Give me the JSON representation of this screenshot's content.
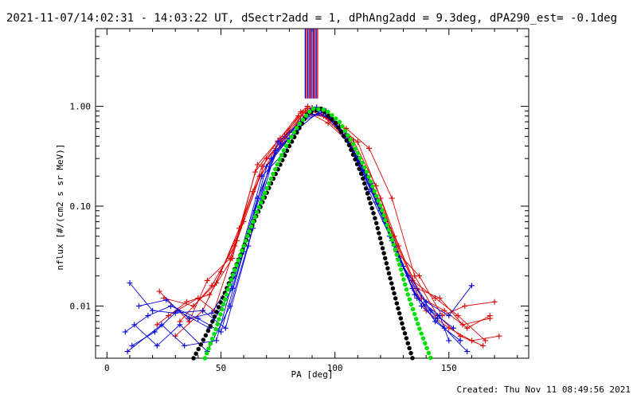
{
  "chart_data": {
    "type": "line",
    "title": "2021-11-07/14:02:31 - 14:03:22 UT, dSectr2add = 1, dPhAng2add = 9.3deg, dPA290_est= -0.1deg",
    "xlabel": "PA [deg]",
    "ylabel": "nflux [#/(cm2 s sr MeV)]",
    "xlim": [
      -5,
      185
    ],
    "ylim": [
      0.003,
      6.0
    ],
    "yscale": "log",
    "x_ticks": [
      0,
      50,
      100,
      150
    ],
    "x_tick_labels": [
      "0",
      "50",
      "100",
      "150"
    ],
    "y_ticks": [
      0.01,
      0.1,
      1.0
    ],
    "y_tick_labels": [
      "0.01",
      "0.10",
      "1.00"
    ],
    "footer": "Created: Thu Nov 11 08:49:56 2021",
    "colors": {
      "red": "#dd0000",
      "blue": "#0000dd",
      "black": "#000000",
      "green": "#00e000"
    },
    "fits": [
      {
        "color": "black",
        "style": "dotted",
        "x": [
          38,
          45,
          52,
          58,
          65,
          72,
          80,
          88,
          94,
          100,
          106,
          112,
          118,
          124,
          130,
          134
        ],
        "y": [
          0.003,
          0.006,
          0.014,
          0.03,
          0.075,
          0.17,
          0.4,
          0.85,
          0.95,
          0.7,
          0.42,
          0.2,
          0.07,
          0.02,
          0.006,
          0.003
        ]
      },
      {
        "color": "green",
        "style": "dotted",
        "x": [
          43,
          48,
          54,
          60,
          66,
          72,
          78,
          84,
          90,
          96,
          102,
          108,
          114,
          120,
          126,
          132,
          137,
          142
        ],
        "y": [
          0.003,
          0.006,
          0.017,
          0.04,
          0.09,
          0.19,
          0.38,
          0.65,
          0.95,
          0.92,
          0.7,
          0.42,
          0.22,
          0.1,
          0.04,
          0.013,
          0.006,
          0.003
        ]
      }
    ],
    "series": [
      {
        "color": "red",
        "x": [
          22,
          35,
          45,
          55,
          65,
          75,
          85,
          88,
          95,
          105,
          115,
          125,
          135,
          145,
          155,
          165
        ],
        "y": [
          0.0065,
          0.011,
          0.013,
          0.03,
          0.22,
          0.45,
          0.88,
          1.0,
          0.8,
          0.6,
          0.38,
          0.12,
          0.02,
          0.008,
          0.005,
          0.004
        ]
      },
      {
        "color": "red",
        "x": [
          25,
          38,
          48,
          58,
          68,
          78,
          88,
          98,
          108,
          118,
          128,
          138,
          148,
          158,
          168
        ],
        "y": [
          0.012,
          0.01,
          0.017,
          0.06,
          0.25,
          0.5,
          0.95,
          0.72,
          0.46,
          0.16,
          0.04,
          0.012,
          0.009,
          0.006,
          0.008
        ]
      },
      {
        "color": "red",
        "x": [
          27,
          40,
          47,
          57,
          67,
          77,
          87,
          97,
          107,
          117,
          127,
          137,
          147,
          157,
          170
        ],
        "y": [
          0.008,
          0.012,
          0.009,
          0.045,
          0.2,
          0.42,
          0.9,
          0.68,
          0.42,
          0.14,
          0.035,
          0.02,
          0.008,
          0.01,
          0.011
        ]
      },
      {
        "color": "red",
        "x": [
          30,
          42,
          50,
          60,
          70,
          80,
          90,
          100,
          110,
          120,
          130,
          140,
          150,
          160,
          172
        ],
        "y": [
          0.005,
          0.009,
          0.022,
          0.07,
          0.3,
          0.55,
          0.97,
          0.66,
          0.44,
          0.12,
          0.025,
          0.009,
          0.006,
          0.0045,
          0.005
        ]
      },
      {
        "color": "red",
        "x": [
          23,
          36,
          44,
          54,
          64,
          74,
          84,
          94,
          104,
          114,
          124,
          134,
          144,
          154,
          166
        ],
        "y": [
          0.014,
          0.007,
          0.018,
          0.03,
          0.14,
          0.38,
          0.8,
          0.84,
          0.5,
          0.2,
          0.06,
          0.018,
          0.012,
          0.008,
          0.0045
        ]
      },
      {
        "color": "red",
        "x": [
          32,
          46,
          56,
          66,
          76,
          86,
          96,
          106,
          116,
          126,
          136,
          146,
          156,
          168
        ],
        "y": [
          0.007,
          0.016,
          0.04,
          0.26,
          0.48,
          0.86,
          0.78,
          0.5,
          0.17,
          0.05,
          0.015,
          0.012,
          0.0065,
          0.0075
        ]
      },
      {
        "color": "blue",
        "x": [
          8,
          18,
          28,
          40,
          50,
          60,
          70,
          80,
          90,
          100,
          110,
          120,
          130,
          140,
          150,
          160
        ],
        "y": [
          0.0055,
          0.008,
          0.01,
          0.0075,
          0.0055,
          0.035,
          0.25,
          0.48,
          0.95,
          0.7,
          0.3,
          0.09,
          0.025,
          0.011,
          0.008,
          0.016
        ]
      },
      {
        "color": "blue",
        "x": [
          10,
          20,
          30,
          42,
          52,
          62,
          72,
          82,
          92,
          102,
          112,
          122,
          132,
          142,
          152
        ],
        "y": [
          0.017,
          0.009,
          0.0085,
          0.009,
          0.006,
          0.04,
          0.3,
          0.55,
          0.98,
          0.62,
          0.22,
          0.07,
          0.02,
          0.009,
          0.006
        ]
      },
      {
        "color": "blue",
        "x": [
          12,
          22,
          32,
          44,
          54,
          64,
          74,
          84,
          94,
          104,
          114,
          124,
          134,
          144,
          155
        ],
        "y": [
          0.0065,
          0.004,
          0.0065,
          0.0035,
          0.01,
          0.06,
          0.36,
          0.6,
          0.92,
          0.5,
          0.2,
          0.05,
          0.015,
          0.007,
          0.0045
        ]
      },
      {
        "color": "blue",
        "x": [
          14,
          26,
          36,
          46,
          56,
          66,
          76,
          86,
          96,
          106,
          116,
          126,
          136,
          146,
          150
        ],
        "y": [
          0.01,
          0.0115,
          0.0075,
          0.0085,
          0.02,
          0.12,
          0.42,
          0.75,
          0.9,
          0.45,
          0.17,
          0.04,
          0.012,
          0.008,
          0.0045
        ]
      },
      {
        "color": "blue",
        "x": [
          9,
          24,
          34,
          48,
          58,
          68,
          78,
          88,
          98,
          108,
          118,
          128,
          138,
          148,
          158
        ],
        "y": [
          0.0035,
          0.0065,
          0.004,
          0.0045,
          0.03,
          0.2,
          0.35,
          0.85,
          0.78,
          0.36,
          0.11,
          0.03,
          0.01,
          0.006,
          0.0035
        ]
      },
      {
        "color": "blue",
        "x": [
          11,
          21,
          31,
          45,
          55,
          65,
          75,
          85,
          95,
          105,
          115,
          125,
          135,
          145
        ],
        "y": [
          0.004,
          0.0055,
          0.009,
          0.006,
          0.015,
          0.09,
          0.44,
          0.7,
          0.88,
          0.52,
          0.14,
          0.045,
          0.013,
          0.0075
        ]
      }
    ],
    "vertical_lines": [
      {
        "color": "blue",
        "x": 87.0
      },
      {
        "color": "red",
        "x": 87.6
      },
      {
        "color": "blue",
        "x": 88.2
      },
      {
        "color": "red",
        "x": 88.8
      },
      {
        "color": "blue",
        "x": 89.4
      },
      {
        "color": "red",
        "x": 90.0
      },
      {
        "color": "blue",
        "x": 90.6
      },
      {
        "color": "red",
        "x": 91.2
      },
      {
        "color": "blue",
        "x": 91.8
      },
      {
        "color": "red",
        "x": 92.4
      }
    ],
    "vertical_lines_ymin": 1.2,
    "grid": false,
    "legend": "none"
  }
}
